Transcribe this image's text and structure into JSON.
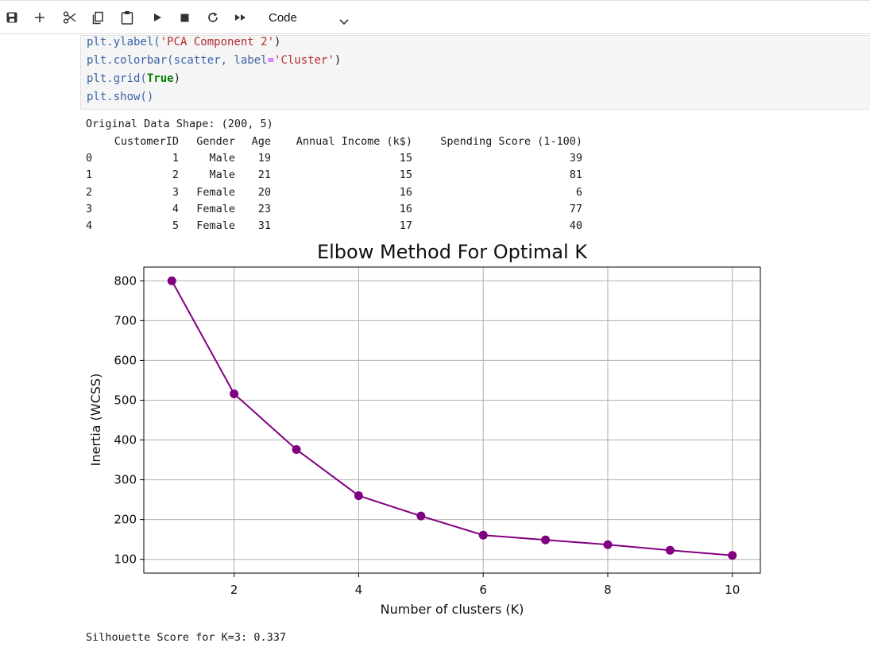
{
  "toolbar": {
    "cell_type": "Code",
    "icons": [
      "save-icon",
      "plus-icon",
      "scissors-icon",
      "copy-icon",
      "paste-icon",
      "run-icon",
      "stop-icon",
      "restart-icon",
      "fast-forward-icon",
      "chevron-down-icon"
    ]
  },
  "code": {
    "line1": {
      "fn": "plt.ylabel(",
      "arg": "'PCA Component 2'",
      "end": ")"
    },
    "line2": {
      "fn": "plt.colorbar(scatter, label",
      "eq": "=",
      "arg": "'Cluster'",
      "end": ")"
    },
    "line3": {
      "fn": "plt.grid(",
      "arg": "True",
      "end": ")"
    },
    "line4": {
      "fn": "plt.show()"
    }
  },
  "output": {
    "shape_line": "Original Data Shape: (200, 5)",
    "table": {
      "columns": [
        "CustomerID",
        "Gender",
        "Age",
        "Annual Income (k$)",
        "Spending Score (1-100)"
      ],
      "rows": [
        {
          "index": "0",
          "CustomerID": "1",
          "Gender": "Male",
          "Age": "19",
          "Income": "15",
          "Score": "39"
        },
        {
          "index": "1",
          "CustomerID": "2",
          "Gender": "Male",
          "Age": "21",
          "Income": "15",
          "Score": "81"
        },
        {
          "index": "2",
          "CustomerID": "3",
          "Gender": "Female",
          "Age": "20",
          "Income": "16",
          "Score": "6"
        },
        {
          "index": "3",
          "CustomerID": "4",
          "Gender": "Female",
          "Age": "23",
          "Income": "16",
          "Score": "77"
        },
        {
          "index": "4",
          "CustomerID": "5",
          "Gender": "Female",
          "Age": "31",
          "Income": "17",
          "Score": "40"
        }
      ]
    },
    "silhouette": "Silhouette Score for K=3: 0.337"
  },
  "chart_data": {
    "type": "line",
    "title": "Elbow Method For Optimal K",
    "xlabel": "Number of clusters (K)",
    "ylabel": "Inertia (WCSS)",
    "x": [
      1,
      2,
      3,
      4,
      5,
      6,
      7,
      8,
      9,
      10
    ],
    "series": [
      {
        "values": [
          800,
          516,
          376,
          260,
          209,
          161,
          149,
          137,
          123,
          110
        ],
        "color": "#800080",
        "marker": "o"
      }
    ],
    "xticks": [
      2,
      4,
      6,
      8,
      10
    ],
    "yticks": [
      100,
      200,
      300,
      400,
      500,
      600,
      700,
      800
    ],
    "xlim": [
      0.55,
      10.45
    ],
    "ylim": [
      65.5,
      834.5
    ],
    "grid": true
  }
}
